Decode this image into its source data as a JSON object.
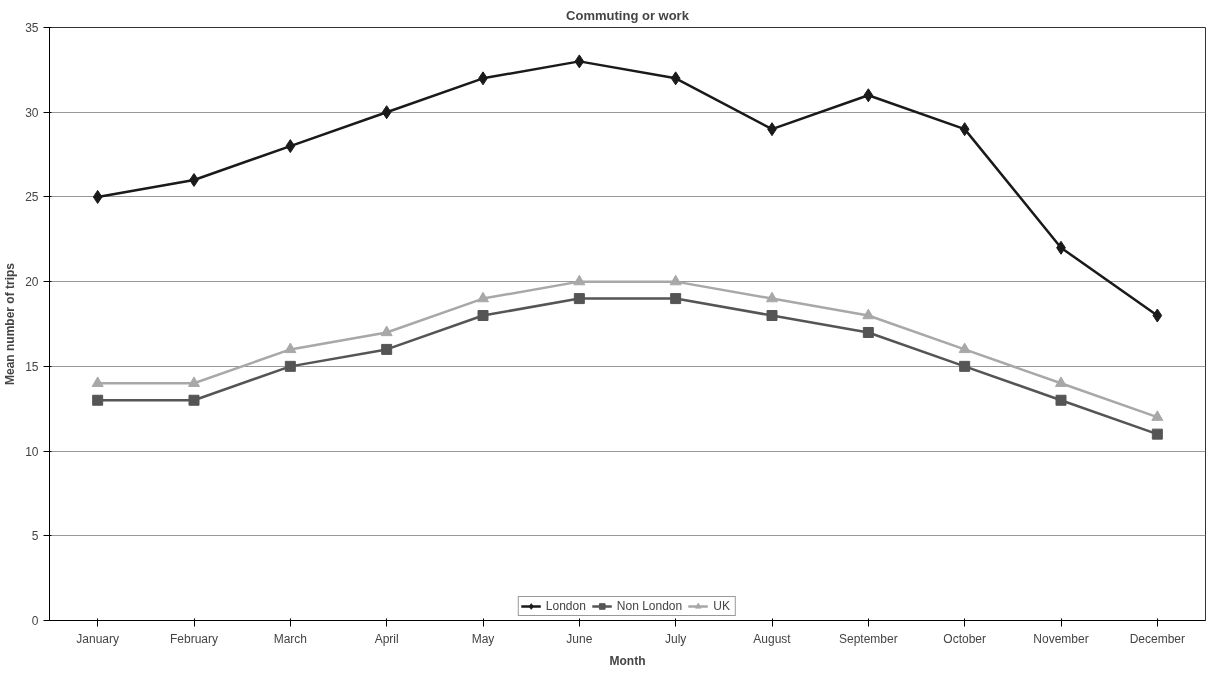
{
  "chart_data": {
    "type": "line",
    "title": "Commuting or work",
    "xlabel": "Month",
    "ylabel": "Mean number of trips",
    "categories": [
      "January",
      "February",
      "March",
      "April",
      "May",
      "June",
      "July",
      "August",
      "September",
      "October",
      "November",
      "December"
    ],
    "series": [
      {
        "name": "London",
        "color": "#1a1a1a",
        "marker": "diamond",
        "values": [
          25,
          26,
          28,
          30,
          32,
          33,
          32,
          29,
          31,
          29,
          22,
          18
        ]
      },
      {
        "name": "Non London",
        "color": "#555555",
        "marker": "square",
        "values": [
          13,
          13,
          15,
          16,
          18,
          19,
          19,
          18,
          17,
          15,
          13,
          11
        ]
      },
      {
        "name": "UK",
        "color": "#a8a8a8",
        "marker": "triangle",
        "values": [
          14,
          14,
          16,
          17,
          19,
          20,
          20,
          19,
          18,
          16,
          14,
          12
        ]
      }
    ],
    "ylim": [
      0,
      35
    ],
    "yticks": [
      0,
      5,
      10,
      15,
      20,
      25,
      30,
      35
    ],
    "grid": "y",
    "legend": "bottom",
    "line_style": "solid"
  }
}
